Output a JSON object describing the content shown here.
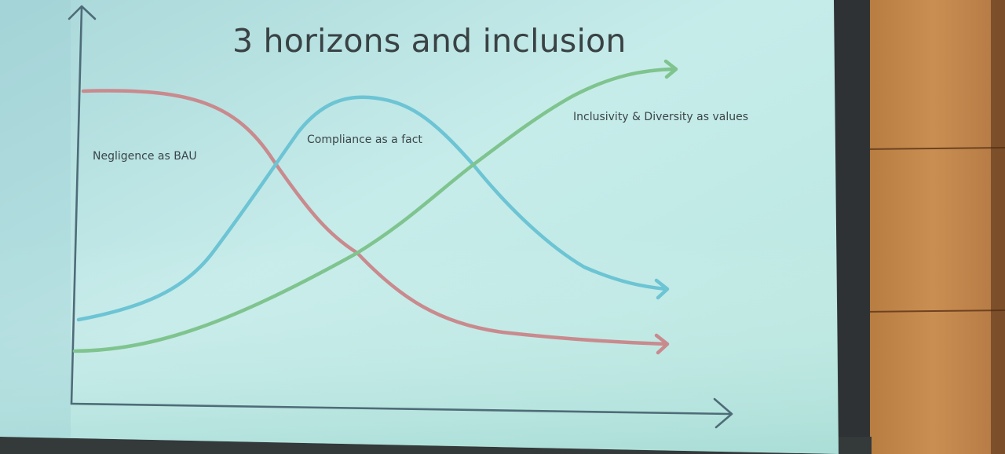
{
  "slide": {
    "title": "3 horizons and inclusion"
  },
  "curves": {
    "negligence": {
      "label": "Negligence as BAU",
      "color": "#c98a8e"
    },
    "compliance": {
      "label": "Compliance as a fact",
      "color": "#6cc4d4"
    },
    "inclusivity": {
      "label": "Inclusivity & Diversity as values",
      "color": "#7fc48e"
    }
  },
  "colors": {
    "screen": "#bfe6e4",
    "axis": "#4f6d78",
    "wall_wood": "#c48a4c",
    "bezel": "#2b2f31"
  }
}
